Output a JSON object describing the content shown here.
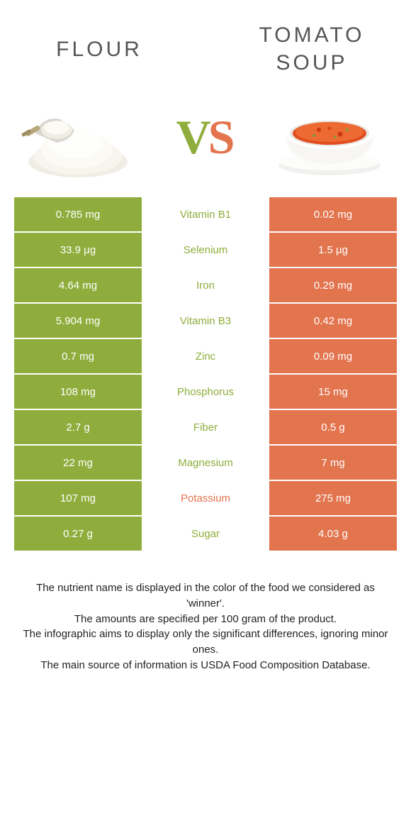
{
  "colors": {
    "flour": "#8fad3c",
    "soup": "#e2744e",
    "textDark": "#555555"
  },
  "titles": {
    "left": "FLOUR",
    "right": "TOMATO SOUP"
  },
  "vs": {
    "v": "V",
    "s": "S"
  },
  "rows": [
    {
      "nutrient": "Vitamin B1",
      "left": "0.785 mg",
      "right": "0.02 mg",
      "winner": "flour"
    },
    {
      "nutrient": "Selenium",
      "left": "33.9 µg",
      "right": "1.5 µg",
      "winner": "flour"
    },
    {
      "nutrient": "Iron",
      "left": "4.64 mg",
      "right": "0.29 mg",
      "winner": "flour"
    },
    {
      "nutrient": "Vitamin B3",
      "left": "5.904 mg",
      "right": "0.42 mg",
      "winner": "flour"
    },
    {
      "nutrient": "Zinc",
      "left": "0.7 mg",
      "right": "0.09 mg",
      "winner": "flour"
    },
    {
      "nutrient": "Phosphorus",
      "left": "108 mg",
      "right": "15 mg",
      "winner": "flour"
    },
    {
      "nutrient": "Fiber",
      "left": "2.7 g",
      "right": "0.5 g",
      "winner": "flour"
    },
    {
      "nutrient": "Magnesium",
      "left": "22 mg",
      "right": "7 mg",
      "winner": "flour"
    },
    {
      "nutrient": "Potassium",
      "left": "107 mg",
      "right": "275 mg",
      "winner": "soup"
    },
    {
      "nutrient": "Sugar",
      "left": "0.27 g",
      "right": "4.03 g",
      "winner": "flour"
    }
  ],
  "footer": {
    "l1": "The nutrient name is displayed in the color of the food we considered as 'winner'.",
    "l2": "The amounts are specified per 100 gram of the product.",
    "l3": "The infographic aims to display only the significant differences, ignoring minor ones.",
    "l4": "The main source of information is USDA Food Composition Database."
  }
}
